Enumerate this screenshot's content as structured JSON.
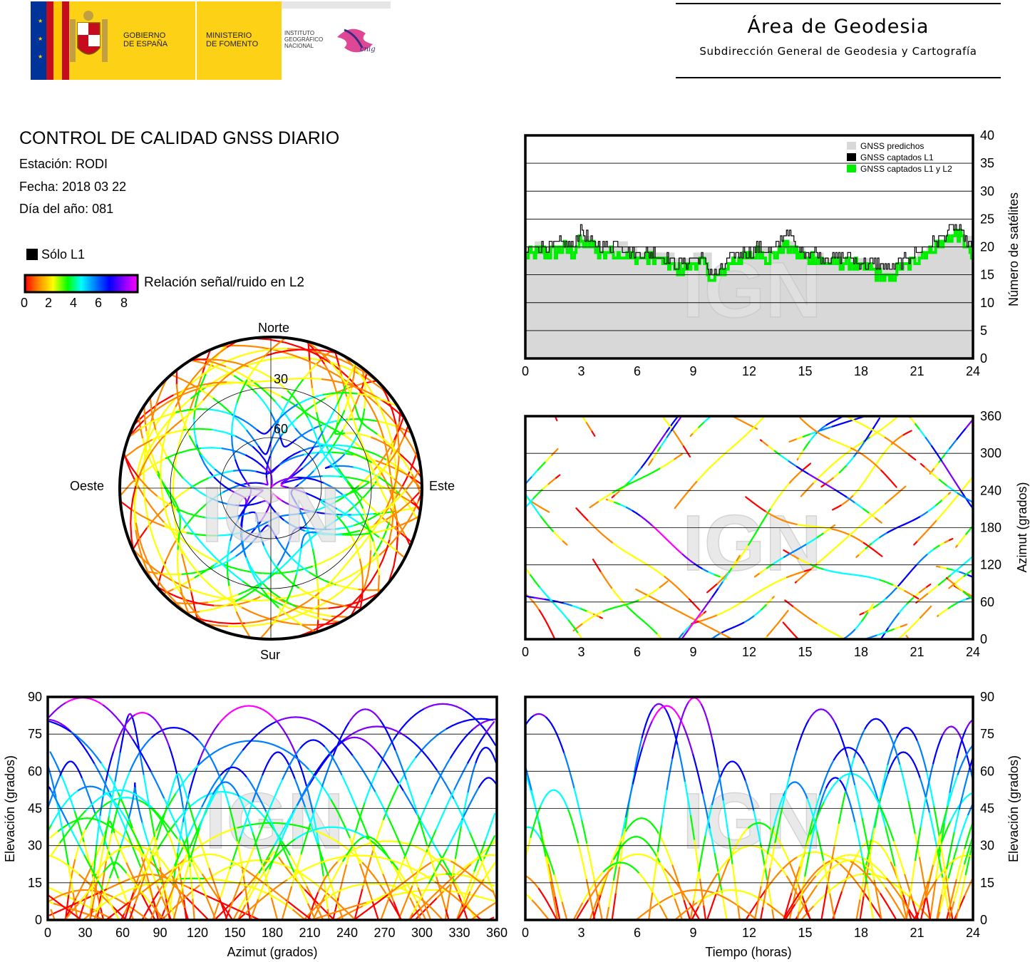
{
  "header": {
    "gov_line1": "GOBIERNO",
    "gov_line2": "DE ESPAÑA",
    "ministry_line1": "MINISTERIO",
    "ministry_line2": "DE FOMENTO",
    "ign_line1": "INSTITUTO",
    "ign_line2": "GEOGRÁFICO",
    "ign_line3": "NACIONAL",
    "cnig": "cnig",
    "area_title": "Área de Geodesia",
    "area_subtitle": "Subdirección General de Geodesia y Cartografía",
    "colors": {
      "flag_red": "#c60b1e",
      "flag_yellow": "#ffc400",
      "eu_blue": "#003399",
      "panel_yellow": "#fcd116"
    }
  },
  "info": {
    "title": "CONTROL DE CALIDAD GNSS DIARIO",
    "station": "Estación: RODI",
    "date": "Fecha: 2018 03 22",
    "doy": "Día del año: 081"
  },
  "legend": {
    "l1_only": "Sólo L1",
    "snr_label": "Relación señal/ruido en L2",
    "scale_ticks": [
      "0",
      "2",
      "4",
      "6",
      "8"
    ],
    "colorscale": [
      "#ff0000",
      "#ff8800",
      "#ffff00",
      "#00ff00",
      "#00ffff",
      "#0080ff",
      "#0000ff",
      "#8000ff",
      "#ff00ff"
    ]
  },
  "watermark": "IGN",
  "chart_data": [
    {
      "id": "skyplot",
      "type": "scatter",
      "projection": "polar",
      "direction_labels": {
        "north": "Norte",
        "south": "Sur",
        "east": "Este",
        "west": "Oeste"
      },
      "ring_labels": [
        "30",
        "60"
      ],
      "rings_elevation": [
        0,
        30,
        60
      ],
      "description_free": false
    },
    {
      "id": "satellite-count",
      "type": "area",
      "x": [
        0,
        0.5,
        1,
        1.5,
        2,
        2.5,
        3,
        3.5,
        4,
        4.5,
        5,
        5.5,
        6,
        6.5,
        7,
        7.5,
        8,
        8.5,
        9,
        9.5,
        10,
        10.5,
        11,
        11.5,
        12,
        12.5,
        13,
        13.5,
        14,
        14.5,
        15,
        15.5,
        16,
        16.5,
        17,
        17.5,
        18,
        18.5,
        19,
        19.5,
        20,
        20.5,
        21,
        21.5,
        22,
        22.5,
        23,
        23.5,
        24
      ],
      "series": [
        {
          "name": "GNSS predichos",
          "values": [
            19,
            21,
            20,
            20,
            21,
            20,
            22,
            21,
            20,
            20,
            21,
            20,
            19,
            20,
            19,
            19,
            18,
            18,
            19,
            19,
            16,
            17,
            18,
            19,
            19,
            20,
            19,
            20,
            21,
            20,
            19,
            19,
            18,
            18,
            18,
            18,
            18,
            17,
            17,
            16,
            17,
            18,
            19,
            20,
            21,
            22,
            23,
            22,
            20
          ]
        },
        {
          "name": "GNSS captados L1",
          "values": [
            19,
            20,
            20,
            20,
            21,
            20,
            23,
            21,
            20,
            20,
            21,
            19,
            19,
            19,
            19,
            18,
            17,
            17,
            18,
            18,
            15,
            16,
            18,
            19,
            19,
            20,
            19,
            20,
            23,
            20,
            19,
            19,
            18,
            18,
            18,
            18,
            17,
            17,
            17,
            16,
            17,
            18,
            19,
            20,
            21,
            22,
            24,
            22,
            19
          ]
        },
        {
          "name": "GNSS captados L1 y L2",
          "values": [
            18,
            19,
            19,
            19,
            20,
            19,
            21,
            20,
            19,
            19,
            19,
            18,
            18,
            18,
            18,
            17,
            16,
            16,
            17,
            17,
            14,
            15,
            17,
            18,
            18,
            19,
            18,
            19,
            20,
            19,
            18,
            18,
            17,
            17,
            17,
            17,
            16,
            16,
            15,
            14,
            16,
            17,
            18,
            19,
            20,
            21,
            22,
            21,
            18
          ]
        }
      ],
      "series_colors": {
        "GNSS predichos": "#d8d8d8",
        "GNSS captados L1": "#000000",
        "GNSS captados L1 y L2": "#00ee00"
      },
      "xlim": [
        0,
        24
      ],
      "ylim": [
        0,
        40
      ],
      "xticks": [
        "0",
        "3",
        "6",
        "9",
        "12",
        "15",
        "18",
        "21",
        "24"
      ],
      "yticks": [
        "0",
        "5",
        "10",
        "15",
        "20",
        "25",
        "30",
        "35",
        "40"
      ],
      "ylabel": "Número de satélites",
      "grid": "y",
      "legend_position": "top-right"
    },
    {
      "id": "azimuth-time",
      "type": "scatter",
      "xlim": [
        0,
        24
      ],
      "ylim": [
        0,
        360
      ],
      "xticks": [
        "0",
        "3",
        "6",
        "9",
        "12",
        "15",
        "18",
        "21",
        "24"
      ],
      "yticks": [
        "0",
        "60",
        "120",
        "180",
        "240",
        "300",
        "360"
      ],
      "ylabel": "Azimut (grados)",
      "grid": "y"
    },
    {
      "id": "elevation-azimuth",
      "type": "scatter",
      "xlim": [
        0,
        360
      ],
      "ylim": [
        0,
        90
      ],
      "xticks": [
        "0",
        "30",
        "60",
        "90",
        "120",
        "150",
        "180",
        "210",
        "240",
        "270",
        "300",
        "330",
        "360"
      ],
      "yticks": [
        "0",
        "15",
        "30",
        "45",
        "60",
        "75",
        "90"
      ],
      "xlabel": "Azimut (grados)",
      "ylabel": "Elevación (grados)",
      "grid": "y"
    },
    {
      "id": "elevation-time",
      "type": "scatter",
      "xlim": [
        0,
        24
      ],
      "ylim": [
        0,
        90
      ],
      "xticks": [
        "0",
        "3",
        "6",
        "9",
        "12",
        "15",
        "18",
        "21",
        "24"
      ],
      "yticks": [
        "0",
        "15",
        "30",
        "45",
        "60",
        "75",
        "90"
      ],
      "xlabel": "Tiempo (horas)",
      "ylabel": "Elevación (grados)",
      "grid": "y"
    }
  ]
}
